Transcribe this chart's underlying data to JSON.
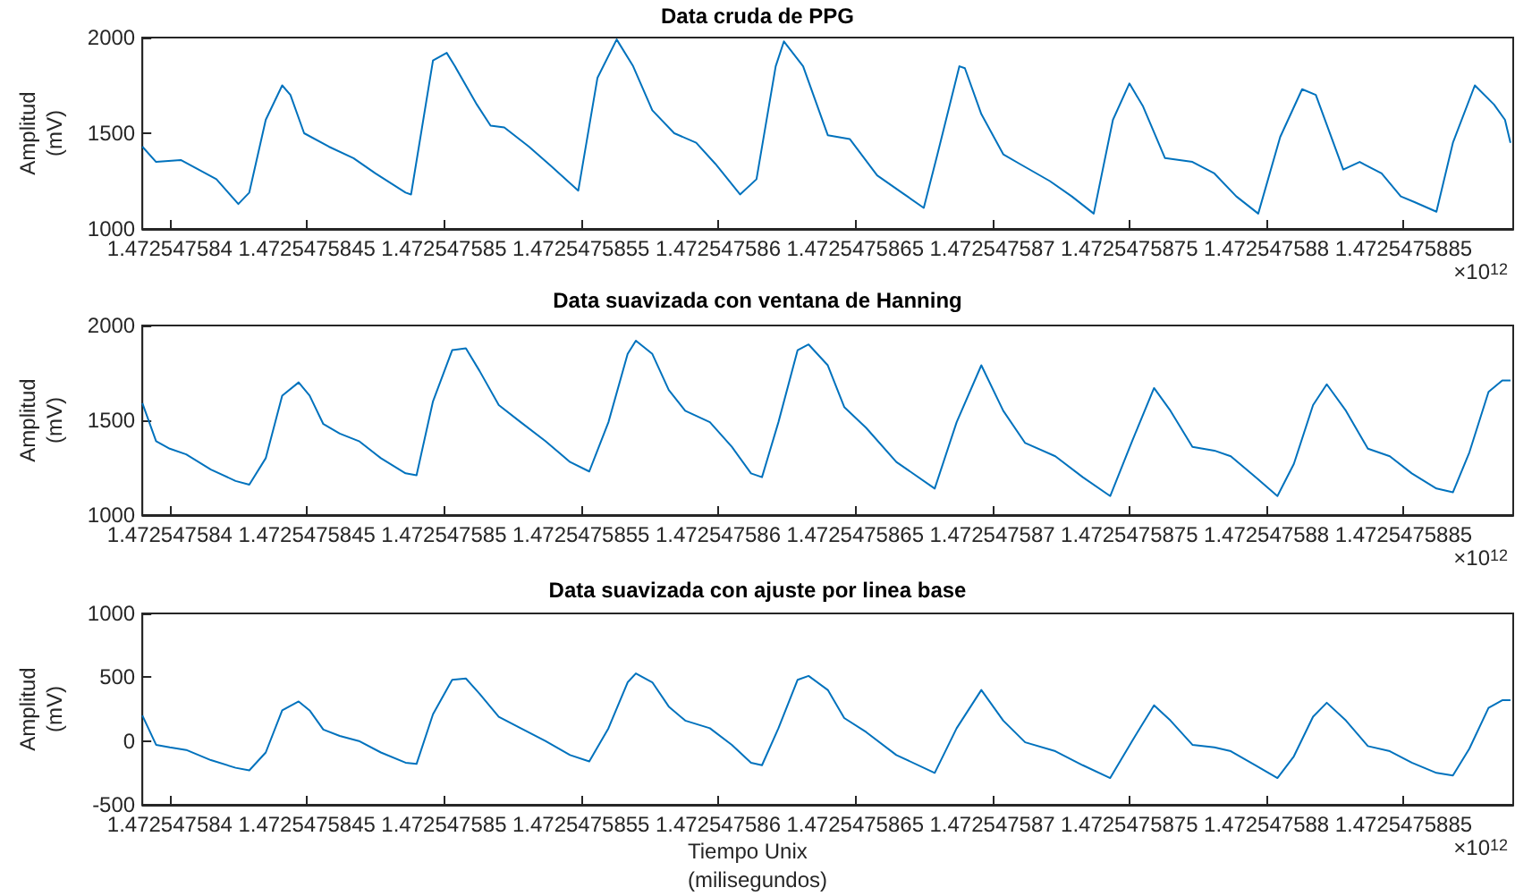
{
  "chart_data": [
    {
      "type": "line",
      "title": "Data cruda de PPG",
      "ylabel": "Amplitud\n(mV)",
      "color": "#0072bd",
      "grid": false,
      "annotations": [
        "×10$^{12}$"
      ],
      "x": [
        1.4725475839,
        1.47254758395,
        1.47254758404,
        1.47254758417,
        1.47254758425,
        1.47254758429,
        1.47254758435,
        1.47254758441,
        1.47254758444,
        1.47254758449,
        1.47254758458,
        1.47254758467,
        1.47254758475,
        1.47254758486,
        1.47254758488,
        1.47254758496,
        1.47254758501,
        1.47254758504,
        1.47254758512,
        1.47254758517,
        1.47254758522,
        1.47254758531,
        1.47254758539,
        1.47254758549,
        1.47254758556,
        1.47254758563,
        1.47254758569,
        1.47254758576,
        1.47254758584,
        1.47254758592,
        1.47254758599,
        1.47254758608,
        1.47254758614,
        1.47254758621,
        1.47254758624,
        1.47254758631,
        1.4725475864,
        1.47254758648,
        1.47254758658,
        1.47254758667,
        1.47254758675,
        1.4725475868,
        1.47254758688,
        1.4725475869,
        1.47254758696,
        1.47254758704,
        1.4725475871,
        1.47254758721,
        1.47254758729,
        1.47254758737,
        1.47254758744,
        1.4725475875,
        1.47254758755,
        1.47254758763,
        1.47254758773,
        1.47254758781,
        1.47254758789,
        1.47254758797,
        1.47254758805,
        1.47254758813,
        1.47254758818,
        1.47254758828,
        1.47254758834,
        1.47254758842,
        1.47254758849,
        1.47254758854,
        1.47254758862,
        1.47254758868,
        1.47254758876,
        1.47254758883,
        1.47254758887,
        1.47254758889
      ],
      "values": [
        1430,
        1350,
        1360,
        1260,
        1130,
        1190,
        1570,
        1750,
        1700,
        1500,
        1430,
        1370,
        1290,
        1190,
        1180,
        1880,
        1920,
        1850,
        1650,
        1540,
        1530,
        1430,
        1330,
        1200,
        1790,
        1990,
        1850,
        1620,
        1500,
        1450,
        1340,
        1180,
        1260,
        1850,
        1980,
        1850,
        1490,
        1470,
        1280,
        1190,
        1110,
        1390,
        1850,
        1840,
        1600,
        1390,
        1340,
        1250,
        1170,
        1080,
        1570,
        1760,
        1640,
        1370,
        1350,
        1290,
        1170,
        1080,
        1480,
        1730,
        1700,
        1310,
        1350,
        1290,
        1170,
        1140,
        1090,
        1450,
        1750,
        1650,
        1570,
        1450
      ],
      "xlim": [
        1.4725475839,
        1.4725475889
      ],
      "xticks": [
        1.472547584,
        1.4725475845,
        1.472547585,
        1.4725475855,
        1.472547586,
        1.4725475865,
        1.472547587,
        1.4725475875,
        1.472547588,
        1.4725475885
      ],
      "ylim": [
        1000,
        2000
      ],
      "yticks": [
        1000,
        1500,
        2000
      ]
    },
    {
      "type": "line",
      "title": "Data suavizada con ventana de Hanning",
      "ylabel": "Amplitud\n(mV)",
      "color": "#0072bd",
      "grid": false,
      "annotations": [
        "×10$^{12}$"
      ],
      "x": [
        1.4725475839,
        1.47254758395,
        1.472547584,
        1.47254758406,
        1.47254758415,
        1.47254758424,
        1.47254758429,
        1.47254758435,
        1.47254758441,
        1.47254758447,
        1.47254758451,
        1.47254758456,
        1.47254758462,
        1.47254758469,
        1.47254758477,
        1.47254758486,
        1.4725475849,
        1.47254758496,
        1.47254758503,
        1.47254758508,
        1.47254758513,
        1.4725475852,
        1.47254758528,
        1.47254758537,
        1.47254758546,
        1.47254758553,
        1.4725475856,
        1.47254758567,
        1.4725475857,
        1.47254758576,
        1.47254758582,
        1.47254758588,
        1.47254758597,
        1.47254758605,
        1.47254758612,
        1.47254758616,
        1.47254758622,
        1.47254758629,
        1.47254758633,
        1.4725475864,
        1.47254758646,
        1.47254758654,
        1.47254758665,
        1.47254758679,
        1.47254758687,
        1.47254758696,
        1.47254758704,
        1.47254758712,
        1.47254758723,
        1.47254758733,
        1.47254758743,
        1.47254758751,
        1.47254758759,
        1.47254758765,
        1.47254758773,
        1.47254758781,
        1.47254758787,
        1.47254758796,
        1.47254758804,
        1.4725475881,
        1.47254758817,
        1.47254758822,
        1.47254758829,
        1.47254758837,
        1.47254758845,
        1.47254758853,
        1.47254758862,
        1.47254758868,
        1.47254758874,
        1.47254758881,
        1.47254758886,
        1.47254758889
      ],
      "values": [
        1590,
        1390,
        1350,
        1320,
        1240,
        1180,
        1160,
        1300,
        1630,
        1700,
        1630,
        1480,
        1430,
        1390,
        1300,
        1220,
        1210,
        1600,
        1870,
        1880,
        1760,
        1580,
        1490,
        1390,
        1280,
        1230,
        1490,
        1850,
        1920,
        1850,
        1660,
        1550,
        1490,
        1360,
        1220,
        1200,
        1490,
        1870,
        1900,
        1790,
        1570,
        1460,
        1280,
        1140,
        1490,
        1790,
        1550,
        1380,
        1310,
        1200,
        1100,
        1390,
        1670,
        1550,
        1360,
        1340,
        1310,
        1200,
        1100,
        1270,
        1580,
        1690,
        1550,
        1350,
        1310,
        1220,
        1140,
        1120,
        1330,
        1650,
        1710,
        1710
      ],
      "xlim": [
        1.4725475839,
        1.4725475889
      ],
      "xticks": [
        1.472547584,
        1.4725475845,
        1.472547585,
        1.4725475855,
        1.472547586,
        1.4725475865,
        1.472547587,
        1.4725475875,
        1.472547588,
        1.4725475885
      ],
      "ylim": [
        1000,
        2000
      ],
      "yticks": [
        1000,
        1500,
        2000
      ]
    },
    {
      "type": "line",
      "title": "Data suavizada con ajuste por linea base",
      "xlabel": "Tiempo Unix\n(milisegundos)",
      "ylabel": "Amplitud\n(mV)",
      "color": "#0072bd",
      "grid": false,
      "annotations": [
        "×10$^{12}$"
      ],
      "x": [
        1.4725475839,
        1.47254758395,
        1.472547584,
        1.47254758406,
        1.47254758415,
        1.47254758424,
        1.47254758429,
        1.47254758435,
        1.47254758441,
        1.47254758447,
        1.47254758451,
        1.47254758456,
        1.47254758462,
        1.47254758469,
        1.47254758477,
        1.47254758486,
        1.4725475849,
        1.47254758496,
        1.47254758503,
        1.47254758508,
        1.47254758513,
        1.4725475852,
        1.47254758528,
        1.47254758537,
        1.47254758546,
        1.47254758553,
        1.4725475856,
        1.47254758567,
        1.4725475857,
        1.47254758576,
        1.47254758582,
        1.47254758588,
        1.47254758597,
        1.47254758605,
        1.47254758612,
        1.47254758616,
        1.47254758622,
        1.47254758629,
        1.47254758633,
        1.4725475864,
        1.47254758646,
        1.47254758654,
        1.47254758665,
        1.47254758679,
        1.47254758687,
        1.47254758696,
        1.47254758704,
        1.47254758712,
        1.47254758723,
        1.47254758733,
        1.47254758743,
        1.47254758751,
        1.47254758759,
        1.47254758765,
        1.47254758773,
        1.47254758781,
        1.47254758787,
        1.47254758796,
        1.47254758804,
        1.4725475881,
        1.47254758817,
        1.47254758822,
        1.47254758829,
        1.47254758837,
        1.47254758845,
        1.47254758853,
        1.47254758862,
        1.47254758868,
        1.47254758874,
        1.47254758881,
        1.47254758886,
        1.47254758889
      ],
      "values": [
        200,
        -30,
        -50,
        -70,
        -150,
        -210,
        -230,
        -90,
        240,
        310,
        240,
        90,
        40,
        0,
        -90,
        -170,
        -180,
        210,
        480,
        490,
        370,
        190,
        100,
        0,
        -110,
        -160,
        100,
        460,
        530,
        460,
        270,
        160,
        100,
        -30,
        -170,
        -190,
        100,
        480,
        510,
        400,
        180,
        70,
        -110,
        -250,
        100,
        400,
        160,
        -10,
        -80,
        -190,
        -290,
        0,
        280,
        160,
        -30,
        -50,
        -80,
        -190,
        -290,
        -120,
        190,
        300,
        160,
        -40,
        -80,
        -170,
        -250,
        -270,
        -60,
        260,
        320,
        320
      ],
      "xlim": [
        1.4725475839,
        1.4725475889
      ],
      "xticks": [
        1.472547584,
        1.4725475845,
        1.472547585,
        1.4725475855,
        1.472547586,
        1.4725475865,
        1.472547587,
        1.4725475875,
        1.472547588,
        1.4725475885
      ],
      "ylim": [
        -500,
        1000
      ],
      "yticks": [
        -500,
        0,
        500,
        1000
      ]
    }
  ]
}
